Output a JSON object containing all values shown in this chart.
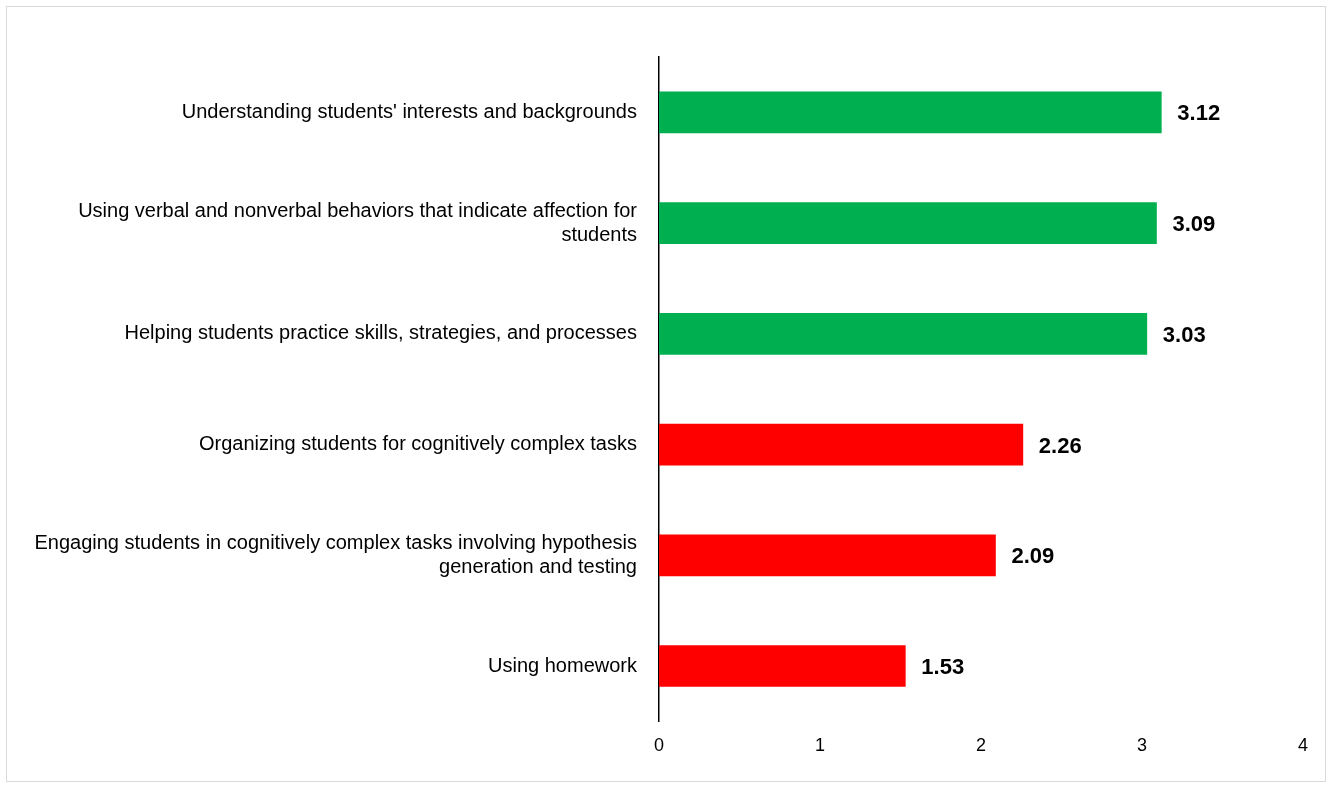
{
  "chart_data": {
    "type": "bar",
    "orientation": "horizontal",
    "categories": [
      "Understanding students' interests and backgrounds",
      "Using verbal and nonverbal behaviors that indicate affection for students",
      "Helping students practice skills, strategies, and processes",
      "Organizing students for cognitively complex tasks",
      "Engaging students in cognitively complex tasks involving hypothesis generation and testing",
      "Using homework"
    ],
    "values": [
      3.12,
      3.09,
      3.03,
      2.26,
      2.09,
      1.53
    ],
    "colors": [
      "#00b050",
      "#00b050",
      "#00b050",
      "#ff0000",
      "#ff0000",
      "#ff0000"
    ],
    "xlim": [
      0,
      4
    ],
    "xticks": [
      0,
      1,
      2,
      3,
      4
    ],
    "grid": false,
    "legend": false,
    "data_labels": true
  }
}
